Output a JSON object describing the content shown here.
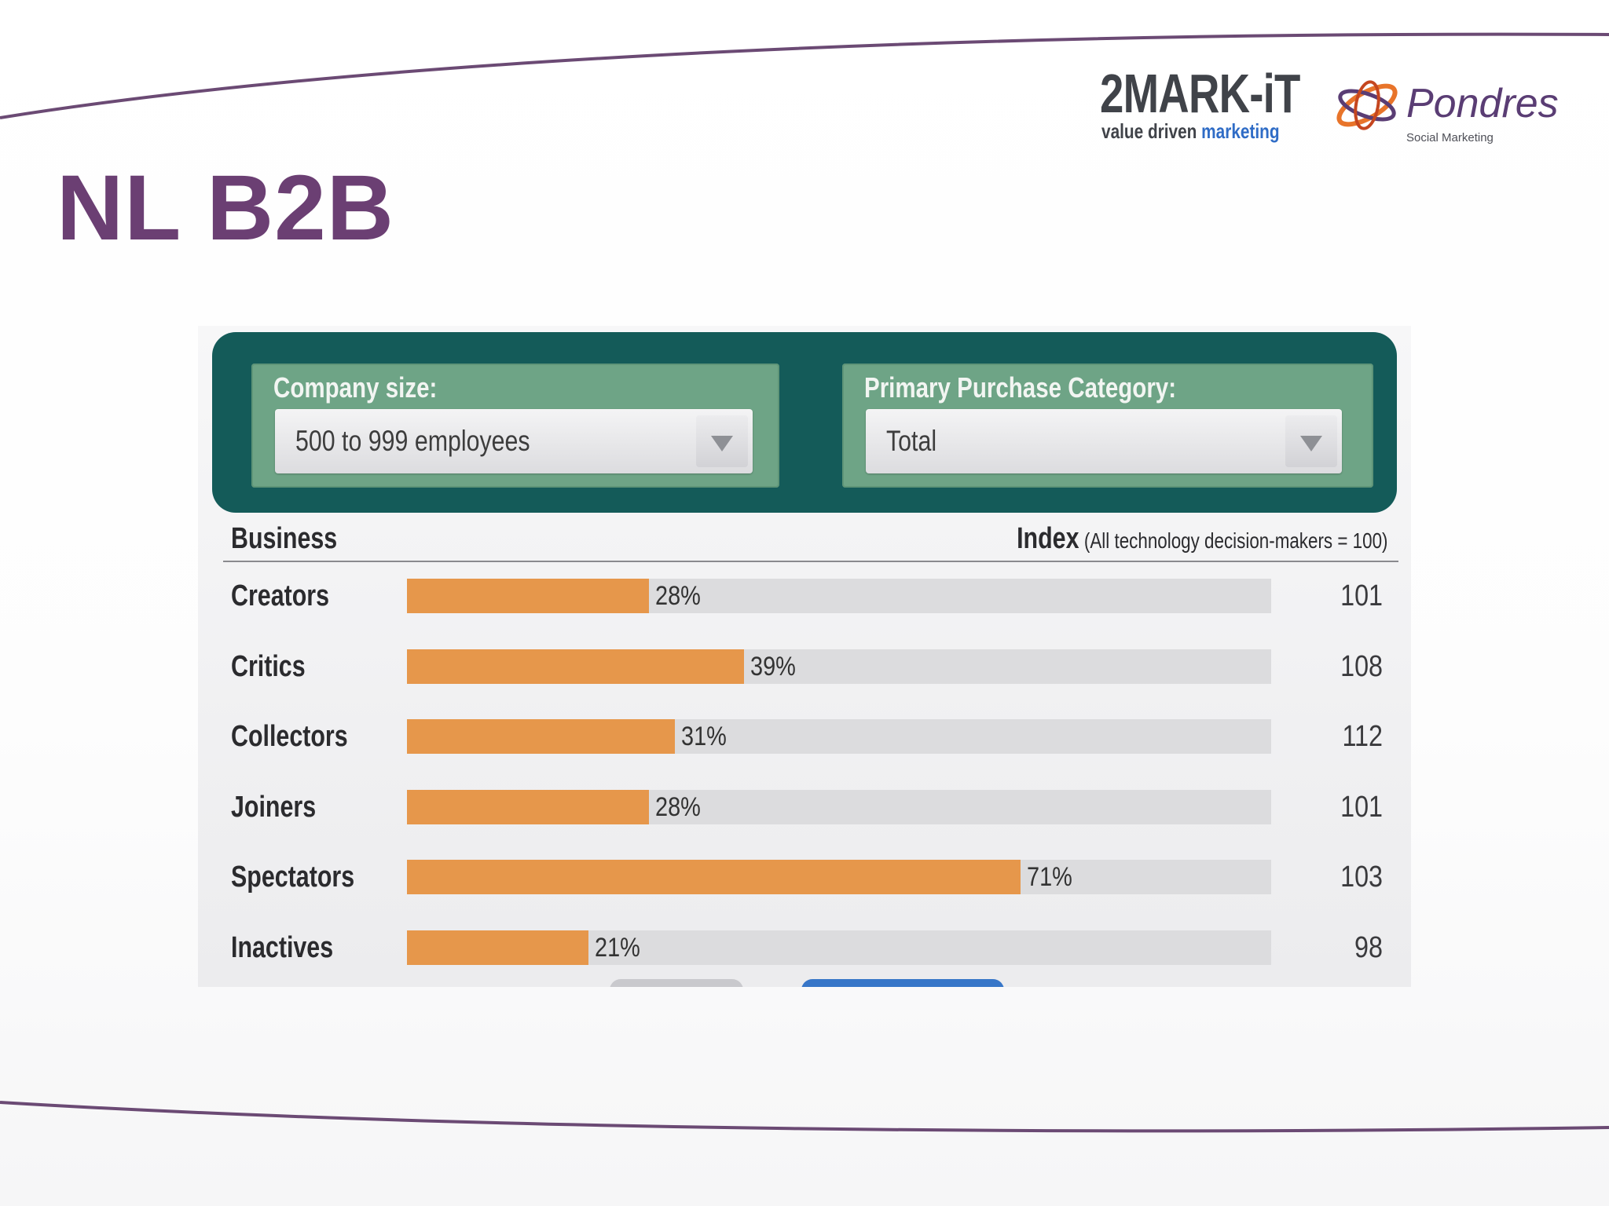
{
  "slide": {
    "title": "NL B2B"
  },
  "logos": {
    "two_markit": {
      "wordmark": "2MARK-iT",
      "tagline_part1": "value driven",
      "tagline_part2": "marketing"
    },
    "pondres": {
      "name": "Pondres",
      "subtitle": "Social Marketing"
    }
  },
  "filters": {
    "company_size": {
      "label": "Company size:",
      "value": "500 to 999 employees"
    },
    "purchase_category": {
      "label": "Primary Purchase Category:",
      "value": "Total"
    }
  },
  "table": {
    "col_business": "Business",
    "col_index": "Index",
    "col_index_note": "(All technology decision-makers = 100)"
  },
  "colors": {
    "accent_purple": "#6b3f73",
    "bar_orange": "#e6974b",
    "filter_teal": "#145b59"
  },
  "chart_data": {
    "type": "bar",
    "orientation": "horizontal",
    "categories": [
      "Creators",
      "Critics",
      "Collectors",
      "Joiners",
      "Spectators",
      "Inactives"
    ],
    "values": [
      28,
      39,
      31,
      28,
      71,
      21
    ],
    "value_labels": [
      "28%",
      "39%",
      "31%",
      "28%",
      "71%",
      "21%"
    ],
    "index": [
      101,
      108,
      112,
      101,
      103,
      98
    ],
    "xlim": [
      0,
      100
    ]
  }
}
